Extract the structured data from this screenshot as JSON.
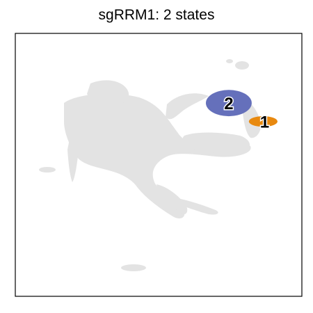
{
  "title": "sgRRM1: 2 states",
  "chart_data": {
    "type": "scatter",
    "title": "sgRRM1: 2 states",
    "xlabel": "",
    "ylabel": "",
    "axes_ticks": false,
    "grid": false,
    "legend": "none",
    "background_color": "#e3e3e3",
    "series": [
      {
        "label": "1",
        "color": "#e8890f",
        "center": [
          0.865,
          0.665
        ],
        "spread": [
          0.05,
          0.02
        ]
      },
      {
        "label": "2",
        "color": "#6570bb",
        "center": [
          0.745,
          0.735
        ],
        "spread": [
          0.08,
          0.05
        ]
      }
    ]
  }
}
